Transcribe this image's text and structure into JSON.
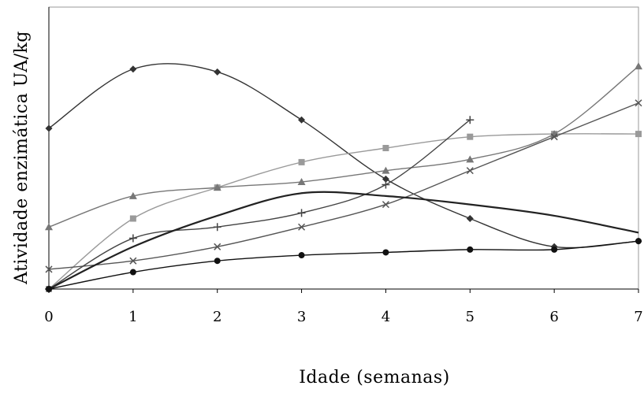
{
  "chart_data": {
    "type": "line",
    "xlabel": "Idade (semanas)",
    "ylabel": "Atividade enzimática UA/kg",
    "xlim": [
      0,
      7
    ],
    "ylim": [
      0,
      100
    ],
    "x_ticks": [
      "0",
      "1",
      "2",
      "3",
      "4",
      "5",
      "6",
      "7"
    ],
    "y_ticks_shown": false,
    "grid": false,
    "smoothed": true,
    "series": [
      {
        "marker": "diamond",
        "color": "#333333",
        "x": [
          0,
          1,
          2,
          3,
          4,
          5,
          6,
          7
        ],
        "y": [
          57,
          78,
          77,
          60,
          39,
          25,
          15,
          17
        ]
      },
      {
        "marker": "square",
        "color": "#9a9a9a",
        "x": [
          0,
          1,
          2,
          3,
          4,
          5,
          6,
          7
        ],
        "y": [
          0,
          25,
          36,
          45,
          50,
          54,
          55,
          55
        ]
      },
      {
        "marker": "triangle",
        "color": "#777777",
        "x": [
          0,
          1,
          2,
          3,
          4,
          5,
          6,
          7
        ],
        "y": [
          22,
          33,
          36,
          38,
          42,
          46,
          55,
          79
        ]
      },
      {
        "marker": "x",
        "color": "#555555",
        "x": [
          0,
          1,
          2,
          3,
          4,
          5,
          6,
          7
        ],
        "y": [
          7,
          10,
          15,
          22,
          30,
          42,
          54,
          66
        ]
      },
      {
        "marker": "plus",
        "color": "#444444",
        "x": [
          0,
          1,
          2,
          3,
          4,
          5
        ],
        "y": [
          0,
          18,
          22,
          27,
          37,
          60
        ]
      },
      {
        "marker": "none",
        "color": "#222222",
        "x": [
          0,
          1,
          2,
          3,
          4,
          5,
          6,
          7
        ],
        "y": [
          0,
          15,
          26,
          34,
          33,
          30,
          26,
          20
        ]
      },
      {
        "marker": "circle",
        "color": "#111111",
        "x": [
          0,
          1,
          2,
          3,
          4,
          5,
          6,
          7
        ],
        "y": [
          0,
          6,
          10,
          12,
          13,
          14,
          14,
          17
        ]
      }
    ]
  }
}
